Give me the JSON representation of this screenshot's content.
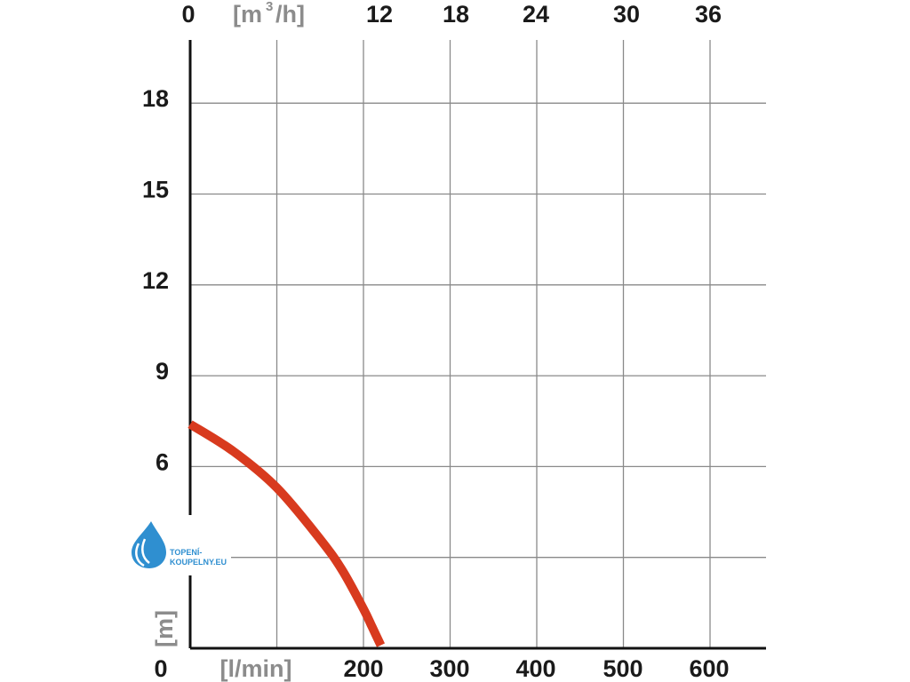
{
  "chart_data": {
    "type": "line",
    "title": "",
    "xlabel": "[l/min]",
    "x2label": "[m3/h]",
    "ylabel": "[m]",
    "xlim": [
      0,
      600
    ],
    "ylim": [
      0,
      18
    ],
    "x_ticks": [
      "0",
      "200",
      "300",
      "400",
      "500",
      "600"
    ],
    "x2_ticks": [
      "0",
      "12",
      "18",
      "24",
      "30",
      "36"
    ],
    "y_ticks": [
      "0",
      "6",
      "9",
      "12",
      "15",
      "18"
    ],
    "grid": true,
    "series": [
      {
        "color": "#d83a1e",
        "x": [
          0,
          50,
          100,
          150,
          175,
          200,
          210,
          220
        ],
        "y": [
          7.4,
          6.5,
          5.3,
          3.6,
          2.6,
          1.3,
          0.7,
          0.1
        ]
      }
    ]
  },
  "logo": {
    "line1": "TOPENÍ-",
    "line2": "KOUPELNY.EU",
    "icon": "water-drop-icon",
    "color": "#2f8fd0"
  }
}
